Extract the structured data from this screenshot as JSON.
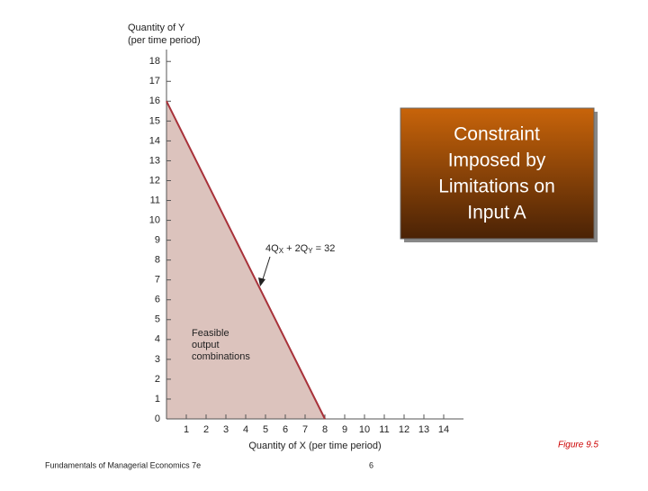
{
  "chart_data": {
    "type": "line",
    "y_axis_label": [
      "Quantity of Y",
      "(per time period)"
    ],
    "x_axis_label": "Quantity of X (per time period)",
    "x": [
      0,
      8
    ],
    "values": [
      16,
      0
    ],
    "color": "#a8323a",
    "fill": "#dcc3bd",
    "xlim": [
      0,
      15
    ],
    "ylim": [
      0,
      18.6
    ],
    "xticks": [
      1,
      2,
      3,
      4,
      5,
      6,
      7,
      8,
      9,
      10,
      11,
      12,
      13,
      14
    ],
    "yticks": [
      0,
      1,
      2,
      3,
      4,
      5,
      6,
      7,
      8,
      9,
      10,
      11,
      12,
      13,
      14,
      15,
      16,
      17,
      18
    ],
    "equation_parts": [
      "4Q",
      "X",
      " + 2Q",
      "Y",
      " = 32"
    ],
    "region_label": [
      "Feasible",
      "output",
      "combinations"
    ],
    "callout": [
      "Constraint",
      "Imposed by",
      "Limitations on",
      "Input A"
    ]
  },
  "footer": {
    "book": "Fundamentals of Managerial Economics 7e",
    "page": "6",
    "figure": "Figure 9.5"
  }
}
